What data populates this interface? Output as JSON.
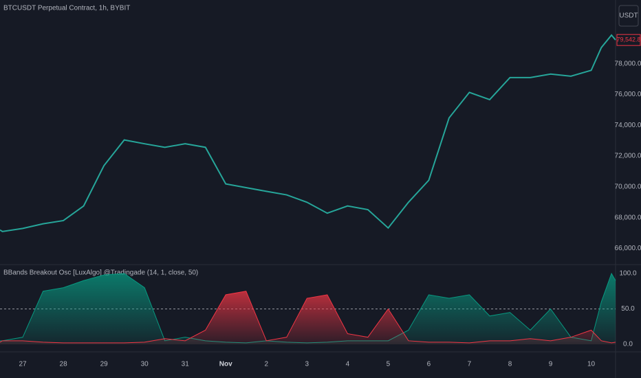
{
  "chart_data": [
    {
      "type": "line",
      "title": "BTCUSDT Perpetual Contract, 1h, BYBIT",
      "currency": "USDT",
      "x": [
        26.44,
        26.5,
        27,
        27.5,
        28,
        28.5,
        29,
        29.5,
        30,
        30.5,
        31,
        31.5,
        32,
        32.5,
        33,
        33.5,
        34,
        34.5,
        35,
        35.5,
        36,
        36.5,
        37,
        37.5,
        38,
        38.5,
        39,
        39.5,
        40,
        40.5,
        41,
        41.25,
        41.5,
        41.6
      ],
      "series": [
        {
          "color": "#26a69a",
          "values": [
            67200,
            67100,
            67300,
            67600,
            67810,
            68760,
            71380,
            73050,
            72800,
            72570,
            72800,
            72570,
            70190,
            69950,
            69710,
            69480,
            69000,
            68290,
            68760,
            68520,
            67330,
            69000,
            70430,
            74480,
            76140,
            75670,
            77100,
            77100,
            77330,
            77190,
            77570,
            79050,
            79860,
            79542.8
          ]
        }
      ],
      "last_price": {
        "value": 79542.8,
        "label": "79,542.8"
      },
      "xlim": [
        26.44,
        41.6
      ],
      "ylim": [
        64950,
        82140
      ],
      "yticks": [
        {
          "value": 66000,
          "label": "66,000.0"
        },
        {
          "value": 68000,
          "label": "68,000.0"
        },
        {
          "value": 70000,
          "label": "70,000.0"
        },
        {
          "value": 72000,
          "label": "72,000.0"
        },
        {
          "value": 74000,
          "label": "74,000.0"
        },
        {
          "value": 76000,
          "label": "76,000.0"
        },
        {
          "value": 78000,
          "label": "78,000.0"
        }
      ]
    },
    {
      "type": "area",
      "title": "BBands Breakout Osc [LuxAlgo] @Tradingade (14, 1, close, 50)",
      "x": [
        26.44,
        26.5,
        27,
        27.5,
        28,
        28.5,
        29,
        29.5,
        30,
        30.5,
        31,
        31.5,
        32,
        32.5,
        33,
        33.5,
        34,
        34.5,
        35,
        35.5,
        36,
        36.5,
        37,
        37.5,
        38,
        38.5,
        39,
        39.5,
        40,
        40.5,
        41,
        41.25,
        41.5,
        41.6
      ],
      "series": [
        {
          "color": "#089981",
          "values": [
            5,
            5,
            10,
            75,
            80,
            90,
            98,
            100,
            80,
            5,
            10,
            5,
            3,
            2,
            5,
            3,
            2,
            3,
            5,
            5,
            5,
            20,
            70,
            65,
            70,
            40,
            45,
            20,
            50,
            10,
            5,
            60,
            100,
            90
          ]
        },
        {
          "color": "#f23645",
          "values": [
            3,
            5,
            5,
            3,
            2,
            2,
            2,
            2,
            3,
            8,
            5,
            20,
            70,
            75,
            5,
            10,
            65,
            70,
            15,
            10,
            50,
            5,
            3,
            3,
            2,
            5,
            5,
            8,
            5,
            10,
            20,
            5,
            2,
            3
          ]
        }
      ],
      "xlim": [
        26.44,
        41.6
      ],
      "ylim": [
        -10.7,
        112.6
      ],
      "yticks": [
        {
          "value": 0,
          "label": "0.0"
        },
        {
          "value": 50,
          "label": "50.0"
        },
        {
          "value": 100,
          "label": "100.0"
        }
      ],
      "dashed_tick": 1,
      "xticks": [
        {
          "value": 27,
          "label": "27"
        },
        {
          "value": 28,
          "label": "28"
        },
        {
          "value": 29,
          "label": "29"
        },
        {
          "value": 30,
          "label": "30"
        },
        {
          "value": 31,
          "label": "31"
        },
        {
          "value": 32,
          "label": "Nov"
        },
        {
          "value": 33,
          "label": "2"
        },
        {
          "value": 34,
          "label": "3"
        },
        {
          "value": 35,
          "label": "4"
        },
        {
          "value": 36,
          "label": "5"
        },
        {
          "value": 37,
          "label": "6"
        },
        {
          "value": 38,
          "label": "7"
        },
        {
          "value": 39,
          "label": "8"
        },
        {
          "value": 40,
          "label": "9"
        },
        {
          "value": 41,
          "label": "10"
        }
      ]
    }
  ]
}
